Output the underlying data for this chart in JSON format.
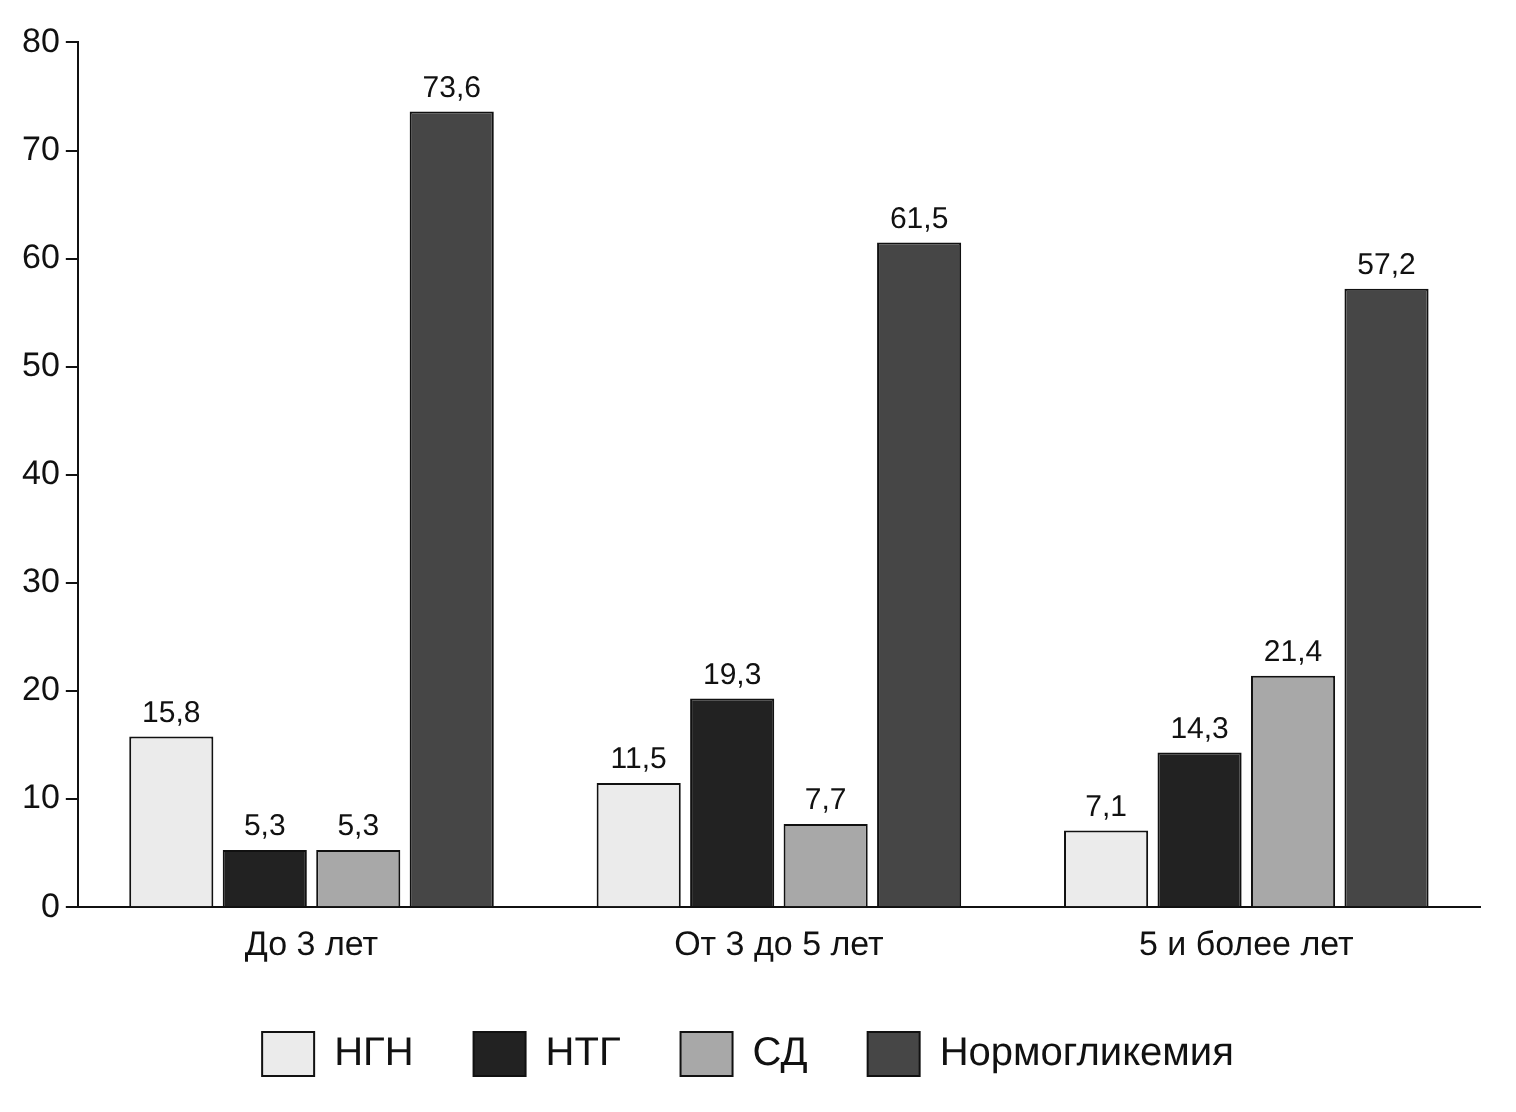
{
  "chart_data": {
    "type": "bar",
    "categories": [
      "До 3 лет",
      "От 3 до 5 лет",
      "5 и более лет"
    ],
    "series": [
      {
        "name": "НГН",
        "color": "#ebebeb",
        "values": [
          15.8,
          11.5,
          7.1
        ],
        "value_labels": [
          "15,8",
          "11,5",
          "7,1"
        ]
      },
      {
        "name": "НТГ",
        "color": "#222222",
        "values": [
          5.3,
          19.3,
          14.3
        ],
        "value_labels": [
          "5,3",
          "19,3",
          "14,3"
        ]
      },
      {
        "name": "СД",
        "color": "#a8a8a8",
        "values": [
          5.3,
          7.7,
          21.4
        ],
        "value_labels": [
          "5,3",
          "7,7",
          "21,4"
        ]
      },
      {
        "name": "Нормогликемия",
        "color": "#464646",
        "values": [
          73.6,
          61.5,
          57.2
        ],
        "value_labels": [
          "73,6",
          "61,5",
          "57,2"
        ]
      }
    ],
    "ylim": [
      0,
      80
    ],
    "yticks": [
      0,
      10,
      20,
      30,
      40,
      50,
      60,
      70,
      80
    ],
    "grid": false,
    "legend": "bottom"
  }
}
